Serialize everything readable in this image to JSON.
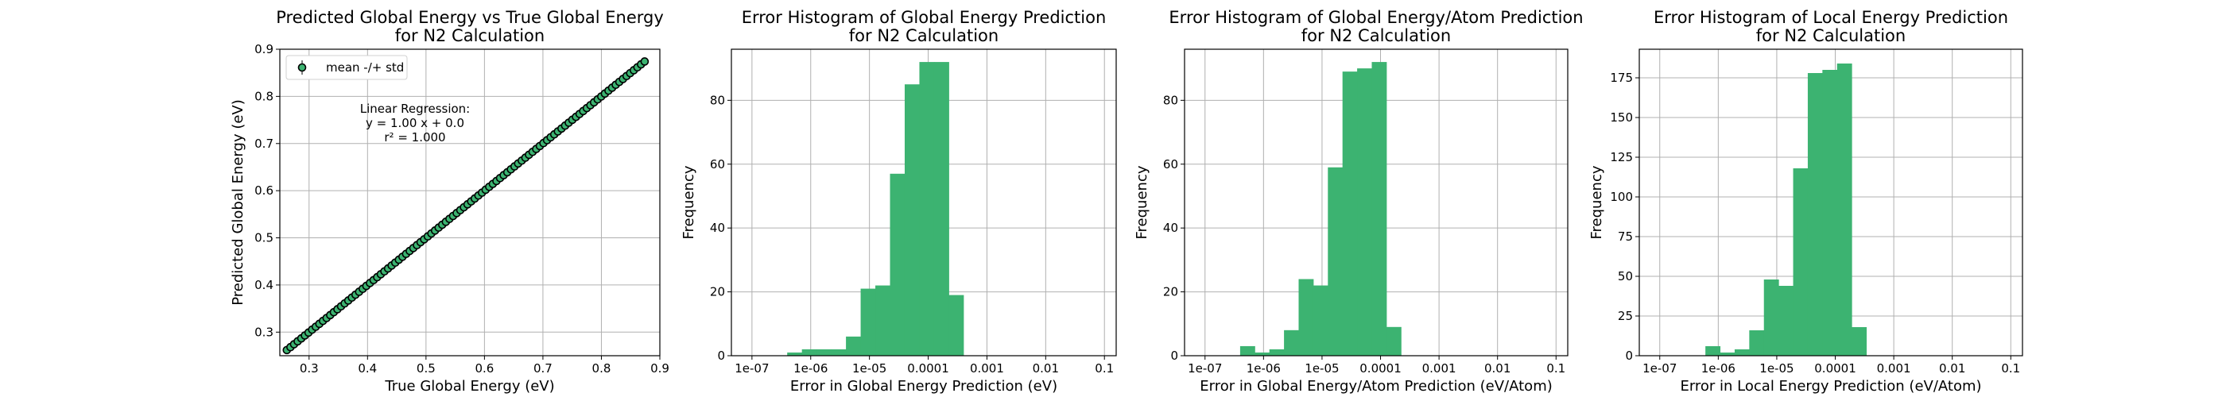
{
  "colors": {
    "bar": "#3cb371",
    "marker_fill": "#3cb371",
    "marker_edge": "#000000",
    "grid": "#b0b0b0",
    "axis": "#000000",
    "background": "#ffffff"
  },
  "chart_data": [
    {
      "type": "scatter",
      "title_lines": [
        "Predicted Global Energy vs True Global Energy",
        "for N2 Calculation"
      ],
      "xlabel": "True Global Energy (eV)",
      "ylabel": "Predicted Global Energy (eV)",
      "xlim": [
        0.25,
        0.9
      ],
      "ylim": [
        0.25,
        0.9
      ],
      "xticks": [
        0.3,
        0.4,
        0.5,
        0.6,
        0.7,
        0.8,
        0.9
      ],
      "xtick_labels": [
        "0.3",
        "0.4",
        "0.5",
        "0.6",
        "0.7",
        "0.8",
        "0.9"
      ],
      "yticks": [
        0.3,
        0.4,
        0.5,
        0.6,
        0.7,
        0.8,
        0.9
      ],
      "ytick_labels": [
        "0.3",
        "0.4",
        "0.5",
        "0.6",
        "0.7",
        "0.8",
        "0.9"
      ],
      "grid": true,
      "legend": {
        "label": "mean -/+ std",
        "placement": "upper-left"
      },
      "annotation_lines": [
        "Linear Regression:",
        "y = 1.00 x + 0.0",
        "r² = 1.000"
      ],
      "range": [
        0.262,
        0.874
      ],
      "n_points": 100
    },
    {
      "type": "bar",
      "title_lines": [
        "Error Histogram of Global Energy Prediction",
        "for N2 Calculation"
      ],
      "xlabel": "Error in Global Energy Prediction (eV)",
      "ylabel": "Frequency",
      "xscale": "log",
      "xlim_exp": [
        -7.35,
        -0.8
      ],
      "ylim": [
        0,
        96
      ],
      "xtick_exps": [
        -7,
        -6,
        -5,
        -4,
        -3,
        -2,
        -1
      ],
      "xtick_labels": [
        "1e-07",
        "1e-06",
        "1e-05",
        "0.0001",
        "0.001",
        "0.01",
        "0.1"
      ],
      "yticks": [
        0,
        20,
        40,
        60,
        80
      ],
      "ytick_labels": [
        "0",
        "20",
        "40",
        "60",
        "80"
      ],
      "grid": true,
      "bin_edges_exp": [
        -6.4,
        -6.15,
        -5.9,
        -5.65,
        -5.4,
        -5.15,
        -4.9,
        -4.65,
        -4.4,
        -4.15,
        -3.9,
        -3.65,
        -3.4,
        -3.15
      ],
      "values": [
        1,
        2,
        2,
        2,
        6,
        21,
        22,
        57,
        85,
        92,
        92,
        19,
        0
      ]
    },
    {
      "type": "bar",
      "title_lines": [
        "Error Histogram of Global Energy/Atom Prediction",
        "for N2 Calculation"
      ],
      "xlabel": "Error in Global Energy/Atom Prediction (eV/Atom)",
      "ylabel": "Frequency",
      "xscale": "log",
      "xlim_exp": [
        -7.35,
        -0.8
      ],
      "ylim": [
        0,
        96
      ],
      "xtick_exps": [
        -7,
        -6,
        -5,
        -4,
        -3,
        -2,
        -1
      ],
      "xtick_labels": [
        "1e-07",
        "1e-06",
        "1e-05",
        "0.0001",
        "0.001",
        "0.01",
        "0.1"
      ],
      "yticks": [
        0,
        20,
        40,
        60,
        80
      ],
      "ytick_labels": [
        "0",
        "20",
        "40",
        "60",
        "80"
      ],
      "grid": true,
      "bin_edges_exp": [
        -6.4,
        -6.15,
        -5.9,
        -5.65,
        -5.4,
        -5.15,
        -4.9,
        -4.65,
        -4.4,
        -4.15,
        -3.9,
        -3.65,
        -3.4
      ],
      "values": [
        3,
        1,
        2,
        8,
        24,
        22,
        59,
        89,
        90,
        92,
        9,
        0
      ]
    },
    {
      "type": "bar",
      "title_lines": [
        "Error Histogram of Local Energy Prediction",
        "for N2 Calculation"
      ],
      "xlabel": "Error in Local Energy Prediction (eV/Atom)",
      "ylabel": "Frequency",
      "xscale": "log",
      "xlim_exp": [
        -7.35,
        -0.8
      ],
      "ylim": [
        0,
        193
      ],
      "xtick_exps": [
        -7,
        -6,
        -5,
        -4,
        -3,
        -2,
        -1
      ],
      "xtick_labels": [
        "1e-07",
        "1e-06",
        "1e-05",
        "0.0001",
        "0.001",
        "0.01",
        "0.1"
      ],
      "yticks": [
        0,
        25,
        50,
        75,
        100,
        125,
        150,
        175
      ],
      "ytick_labels": [
        "0",
        "25",
        "50",
        "75",
        "100",
        "125",
        "150",
        "175"
      ],
      "grid": true,
      "bin_edges_exp": [
        -6.22,
        -5.97,
        -5.72,
        -5.47,
        -5.22,
        -4.97,
        -4.72,
        -4.47,
        -4.22,
        -3.97,
        -3.72,
        -3.47,
        -3.22
      ],
      "values": [
        6,
        2,
        4,
        16,
        48,
        44,
        118,
        178,
        180,
        184,
        18,
        0
      ]
    }
  ]
}
